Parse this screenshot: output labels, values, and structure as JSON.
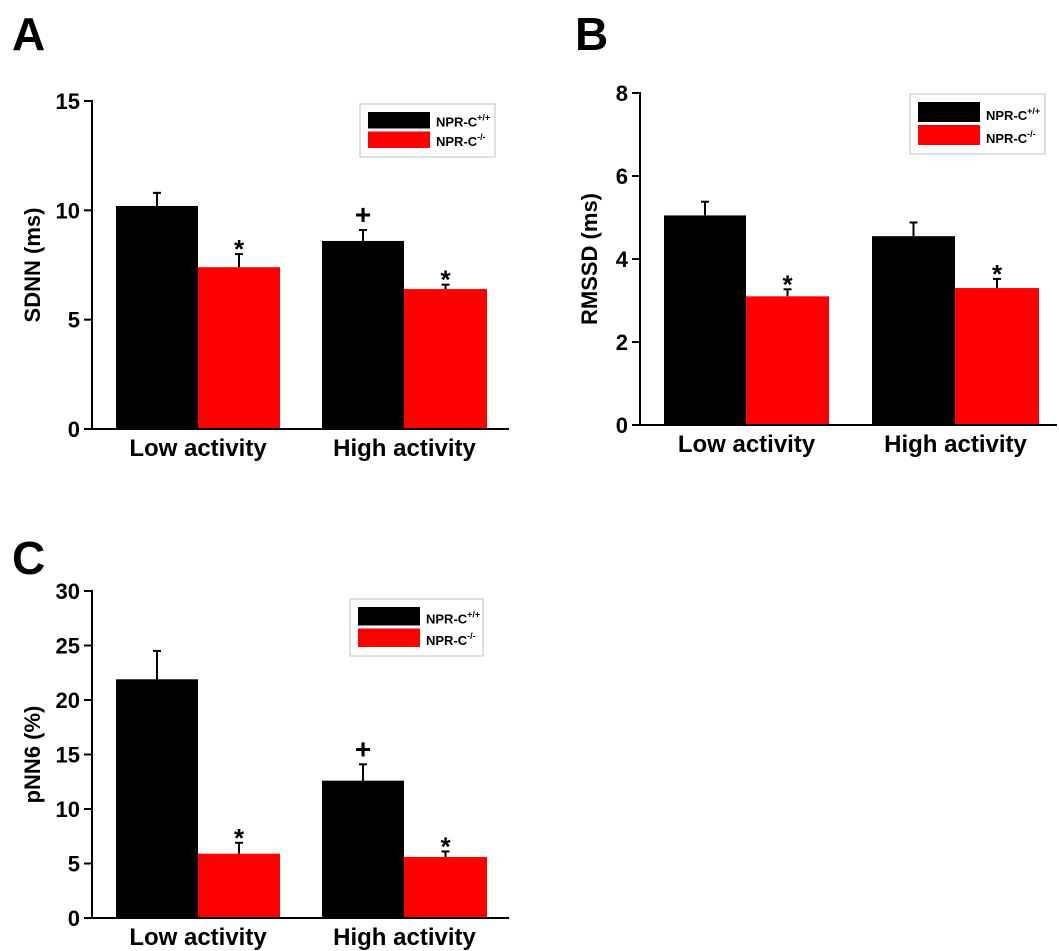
{
  "colors": {
    "series_1": "#000000",
    "series_2": "#ff0000",
    "axis": "#000000"
  },
  "chart_data": [
    {
      "panel_label": "A",
      "type": "bar",
      "categories": [
        "Low activity",
        "High activity"
      ],
      "ylabel": "SDNN (ms)",
      "ylim": [
        0,
        15
      ],
      "yticks": [
        0,
        5,
        10,
        15
      ],
      "ytick_labels": [
        "0",
        "5",
        "10",
        "15"
      ],
      "series": [
        {
          "legend": {
            "base": "NPR-C",
            "sup": "+/+"
          },
          "values": [
            10.2,
            8.6
          ],
          "errors": [
            0.6,
            0.5
          ]
        },
        {
          "legend": {
            "base": "NPR-C",
            "sup": "-/-"
          },
          "values": [
            7.4,
            6.4
          ],
          "errors": [
            0.6,
            0.2
          ]
        }
      ],
      "annotations": [
        {
          "text": "*",
          "series": 1,
          "category": 0
        },
        {
          "text": "+",
          "series": 0,
          "category": 1
        },
        {
          "text": "*",
          "series": 1,
          "category": 1
        }
      ],
      "legend_position": "top-right"
    },
    {
      "panel_label": "B",
      "type": "bar",
      "categories": [
        "Low activity",
        "High activity"
      ],
      "ylabel": "RMSSD (ms)",
      "ylim": [
        0,
        8
      ],
      "yticks": [
        0,
        2,
        4,
        6,
        8
      ],
      "ytick_labels": [
        "0",
        "2",
        "4",
        "6",
        "8"
      ],
      "series": [
        {
          "legend": {
            "base": "NPR-C",
            "sup": "+/+"
          },
          "values": [
            5.05,
            4.55
          ],
          "errors": [
            0.33,
            0.33
          ]
        },
        {
          "legend": {
            "base": "NPR-C",
            "sup": "-/-"
          },
          "values": [
            3.1,
            3.3
          ],
          "errors": [
            0.17,
            0.22
          ]
        }
      ],
      "annotations": [
        {
          "text": "*",
          "series": 1,
          "category": 0
        },
        {
          "text": "*",
          "series": 1,
          "category": 1
        }
      ],
      "legend_position": "top-right"
    },
    {
      "panel_label": "C",
      "type": "bar",
      "categories": [
        "Low activity",
        "High activity"
      ],
      "ylabel": "pNN6 (%)",
      "ylim": [
        0,
        30
      ],
      "yticks": [
        0,
        5,
        10,
        15,
        20,
        25,
        30
      ],
      "ytick_labels": [
        "0",
        "5",
        "10",
        "15",
        "20",
        "25",
        "30"
      ],
      "series": [
        {
          "legend": {
            "base": "NPR-C",
            "sup": "+/+"
          },
          "values": [
            21.9,
            12.6
          ],
          "errors": [
            2.6,
            1.5
          ]
        },
        {
          "legend": {
            "base": "NPR-C",
            "sup": "-/-"
          },
          "values": [
            5.9,
            5.6
          ],
          "errors": [
            1.0,
            0.5
          ]
        }
      ],
      "annotations": [
        {
          "text": "*",
          "series": 1,
          "category": 0
        },
        {
          "text": "+",
          "series": 0,
          "category": 1
        },
        {
          "text": "*",
          "series": 1,
          "category": 1
        }
      ],
      "legend_position": "top-right"
    }
  ]
}
